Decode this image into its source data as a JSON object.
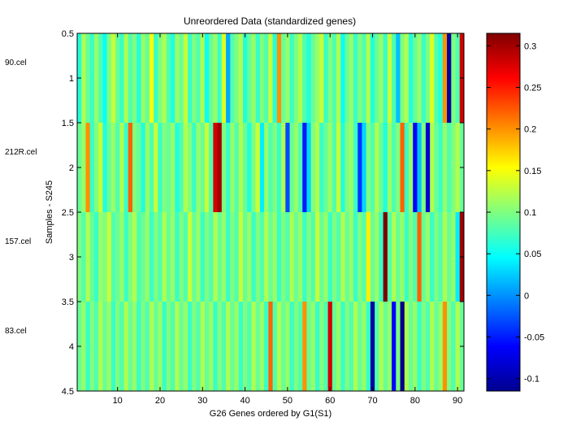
{
  "chart_data": {
    "type": "heatmap",
    "title": "Unreordered Data (standardized genes)",
    "xlabel": "G26 Genes ordered by G1(S1)",
    "ylabel": "Samples - S245",
    "n_cols": 91,
    "xlim": [
      0.5,
      91.5
    ],
    "ylim": [
      0.5,
      4.5
    ],
    "x_ticks": [
      10,
      20,
      30,
      40,
      50,
      60,
      70,
      80,
      90
    ],
    "y_ticks": [
      "0.5",
      "1",
      "1.5",
      "2",
      "2.5",
      "3",
      "3.5",
      "4",
      "4.5"
    ],
    "row_labels": [
      "90.cel",
      "212R.cel",
      "157.cel",
      "83.cel"
    ],
    "colorbar": {
      "colormap": "jet",
      "min": -0.115,
      "max": 0.315,
      "ticks": [
        "-0.1",
        "-0.05",
        "0",
        "0.05",
        "0.1",
        "0.15",
        "0.2",
        "0.25",
        "0.3"
      ]
    },
    "matrix": [
      [
        0.06,
        0.12,
        0.09,
        0.07,
        0.11,
        0.08,
        0.05,
        0.1,
        0.13,
        0.09,
        0.07,
        0.12,
        0.08,
        0.1,
        0.06,
        0.11,
        0.09,
        0.15,
        0.07,
        0.1,
        0.12,
        0.08,
        0.06,
        0.11,
        0.09,
        0.13,
        0.07,
        0.1,
        0.08,
        0.12,
        0.05,
        0.09,
        0.11,
        0.07,
        0.14,
        0.01,
        0.08,
        0.1,
        0.12,
        0.06,
        0.09,
        0.11,
        0.07,
        0.1,
        0.08,
        0.13,
        0.06,
        0.2,
        0.09,
        0.11,
        0.07,
        0.1,
        0.12,
        0.08,
        0.06,
        0.09,
        0.11,
        0.13,
        0.07,
        0.1,
        0.08,
        0.12,
        0.05,
        0.09,
        0.11,
        0.07,
        0.1,
        0.08,
        0.12,
        0.06,
        0.09,
        0.11,
        0.07,
        0.13,
        0.08,
        0.02,
        0.1,
        0.12,
        0.06,
        0.09,
        0.11,
        0.07,
        0.1,
        0.14,
        0.08,
        0.06,
        0.2,
        -0.1,
        0.1,
        0.08,
        0.28
      ],
      [
        0.09,
        0.11,
        0.2,
        0.07,
        0.1,
        0.13,
        0.06,
        0.09,
        0.11,
        0.08,
        0.12,
        0.07,
        0.22,
        0.1,
        0.09,
        0.06,
        0.11,
        0.08,
        0.13,
        0.07,
        0.1,
        0.09,
        0.11,
        0.06,
        0.08,
        0.12,
        0.1,
        0.07,
        0.11,
        0.09,
        0.13,
        0.08,
        0.28,
        0.3,
        0.1,
        0.07,
        0.11,
        0.08,
        0.12,
        0.09,
        0.06,
        0.1,
        0.13,
        0.04,
        0.11,
        0.08,
        0.1,
        0.07,
        0.12,
        -0.03,
        0.09,
        0.11,
        0.08,
        -0.05,
        0.03,
        0.1,
        0.12,
        0.07,
        0.09,
        0.11,
        0.08,
        0.13,
        0.06,
        0.1,
        0.11,
        0.07,
        -0.04,
        0.03,
        0.1,
        0.08,
        0.12,
        0.09,
        0.06,
        0.11,
        0.08,
        0.1,
        0.22,
        0.07,
        0.11,
        -0.06,
        0.02,
        0.1,
        -0.08,
        0.12,
        0.09,
        0.07,
        0.11,
        0.08,
        0.1,
        0.12,
        0.09
      ],
      [
        0.1,
        0.08,
        0.12,
        0.09,
        0.07,
        0.11,
        0.1,
        0.13,
        0.08,
        0.09,
        0.11,
        0.07,
        0.1,
        0.12,
        0.08,
        0.09,
        0.11,
        0.07,
        0.1,
        0.08,
        0.12,
        0.09,
        0.11,
        0.07,
        0.1,
        0.08,
        0.13,
        0.09,
        0.11,
        0.07,
        0.1,
        0.08,
        0.12,
        0.09,
        0.11,
        0.07,
        0.1,
        0.08,
        0.13,
        0.09,
        0.11,
        0.07,
        0.1,
        0.08,
        0.12,
        0.09,
        0.11,
        0.07,
        0.1,
        0.08,
        0.12,
        0.09,
        0.11,
        0.07,
        0.1,
        0.08,
        0.13,
        0.09,
        0.11,
        0.07,
        0.1,
        0.08,
        0.12,
        0.09,
        0.11,
        0.07,
        0.1,
        0.08,
        0.16,
        0.09,
        0.11,
        0.07,
        0.32,
        0.08,
        0.12,
        0.09,
        0.11,
        0.07,
        0.1,
        0.08,
        0.22,
        0.09,
        0.11,
        0.07,
        0.1,
        0.08,
        0.12,
        0.09,
        0.11,
        0.04,
        0.3
      ],
      [
        0.09,
        0.11,
        0.07,
        0.1,
        0.08,
        0.12,
        0.09,
        0.11,
        0.07,
        0.1,
        0.08,
        0.12,
        0.09,
        0.11,
        0.07,
        0.1,
        0.08,
        0.12,
        0.09,
        0.11,
        0.07,
        0.1,
        0.08,
        0.12,
        0.09,
        0.11,
        0.07,
        0.1,
        0.08,
        0.12,
        0.09,
        0.11,
        0.07,
        0.1,
        0.08,
        0.12,
        0.09,
        0.11,
        0.07,
        0.1,
        0.08,
        0.12,
        0.09,
        0.11,
        0.07,
        0.22,
        0.08,
        0.12,
        0.09,
        0.11,
        0.07,
        0.1,
        0.08,
        0.2,
        0.09,
        0.11,
        0.07,
        0.1,
        0.08,
        0.28,
        0.09,
        0.11,
        0.07,
        0.1,
        0.08,
        0.12,
        0.09,
        0.11,
        0.07,
        -0.1,
        0.08,
        0.12,
        0.09,
        0.11,
        -0.06,
        0.1,
        -0.11,
        0.12,
        0.09,
        0.11,
        0.07,
        0.1,
        0.08,
        0.12,
        0.09,
        0.11,
        0.2,
        0.1,
        0.08,
        0.12,
        0.09
      ]
    ]
  }
}
